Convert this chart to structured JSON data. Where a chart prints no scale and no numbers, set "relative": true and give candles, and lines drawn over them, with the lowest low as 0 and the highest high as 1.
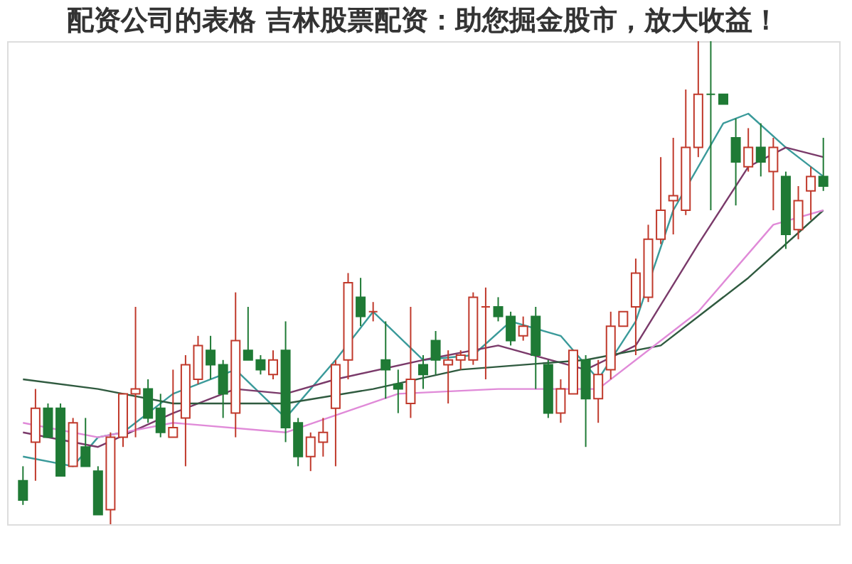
{
  "chart_data": {
    "type": "candlestick",
    "title": "配资公司的表格 吉林股票配资：助您掘金股市，放大收益！",
    "relative": true,
    "categories": [
      null,
      null,
      null,
      null,
      null,
      null,
      null,
      null,
      null,
      null,
      null,
      null,
      null,
      null,
      null,
      null,
      null,
      null,
      null,
      null,
      null,
      null,
      null,
      null,
      null,
      null,
      null,
      null,
      null,
      null,
      null,
      null,
      null,
      null,
      null,
      null,
      null,
      null,
      null,
      null,
      null,
      null,
      null,
      null,
      null,
      null,
      null,
      null,
      null,
      null,
      null,
      null,
      null,
      null,
      null,
      null,
      null,
      null,
      null,
      null,
      null,
      null,
      null,
      null,
      null
    ],
    "ohlc": [
      [
        0.09,
        0.12,
        0.04,
        0.05
      ],
      [
        0.17,
        0.28,
        0.09,
        0.24
      ],
      [
        0.24,
        0.25,
        0.18,
        0.18
      ],
      [
        0.24,
        0.25,
        0.1,
        0.1
      ],
      [
        0.12,
        0.22,
        0.12,
        0.21
      ],
      [
        0.16,
        0.22,
        0.12,
        0.12
      ],
      [
        0.11,
        0.12,
        0.02,
        0.02
      ],
      [
        0.03,
        0.19,
        0,
        0.18
      ],
      [
        0.18,
        0.27,
        0.16,
        0.27
      ],
      [
        0.27,
        0.45,
        0.18,
        0.28
      ],
      [
        0.28,
        0.3,
        0.21,
        0.22
      ],
      [
        0.24,
        0.27,
        0.18,
        0.19
      ],
      [
        0.18,
        0.32,
        0.18,
        0.2
      ],
      [
        0.22,
        0.35,
        0.12,
        0.33
      ],
      [
        0.3,
        0.39,
        0.29,
        0.37
      ],
      [
        0.36,
        0.39,
        0.3,
        0.33
      ],
      [
        0.33,
        0.34,
        0.22,
        0.27
      ],
      [
        0.23,
        0.48,
        0.18,
        0.38
      ],
      [
        0.36,
        0.45,
        0.34,
        0.34
      ],
      [
        0.34,
        0.35,
        0.31,
        0.32
      ],
      [
        0.31,
        0.36,
        0.3,
        0.34
      ],
      [
        0.36,
        0.42,
        0.17,
        0.2
      ],
      [
        0.21,
        0.22,
        0.12,
        0.14
      ],
      [
        0.14,
        0.19,
        0.11,
        0.18
      ],
      [
        0.17,
        0.22,
        0.14,
        0.19
      ],
      [
        0.24,
        0.34,
        0.12,
        0.33
      ],
      [
        0.34,
        0.52,
        0.3,
        0.5
      ],
      [
        0.47,
        0.51,
        0.41,
        0.43
      ],
      [
        0.44,
        0.46,
        0.42,
        0.44
      ],
      [
        0.34,
        0.42,
        0.26,
        0.32
      ],
      [
        0.29,
        0.32,
        0.23,
        0.28
      ],
      [
        0.25,
        0.45,
        0.22,
        0.3
      ],
      [
        0.33,
        0.35,
        0.28,
        0.31
      ],
      [
        0.38,
        0.4,
        0.31,
        0.34
      ],
      [
        0.33,
        0.36,
        0.25,
        0.34
      ],
      [
        0.34,
        0.36,
        0.32,
        0.35
      ],
      [
        0.34,
        0.48,
        0.33,
        0.47
      ],
      [
        0.45,
        0.49,
        0.3,
        0.45
      ],
      [
        0.45,
        0.47,
        0.42,
        0.43
      ],
      [
        0.43,
        0.44,
        0.37,
        0.38
      ],
      [
        0.39,
        0.43,
        0.38,
        0.41
      ],
      [
        0.43,
        0.45,
        0.28,
        0.35
      ],
      [
        0.33,
        0.34,
        0.22,
        0.23
      ],
      [
        0.23,
        0.3,
        0.21,
        0.28
      ],
      [
        0.27,
        0.36,
        0.27,
        0.36
      ],
      [
        0.34,
        0.35,
        0.16,
        0.26
      ],
      [
        0.26,
        0.34,
        0.21,
        0.31
      ],
      [
        0.32,
        0.44,
        0.3,
        0.41
      ],
      [
        0.41,
        0.44,
        0.41,
        0.44
      ],
      [
        0.45,
        0.55,
        0.35,
        0.52
      ],
      [
        0.47,
        0.62,
        0.46,
        0.59
      ],
      [
        0.59,
        0.76,
        0.58,
        0.65
      ],
      [
        0.67,
        0.8,
        0.6,
        0.68
      ],
      [
        0.65,
        0.9,
        0.64,
        0.78
      ],
      [
        0.78,
        1.0,
        0.76,
        0.89
      ],
      [
        0.89,
        1.0,
        0.65,
        0.89
      ],
      [
        0.89,
        0.89,
        0.87,
        0.87
      ],
      [
        0.8,
        0.84,
        0.66,
        0.75
      ],
      [
        0.74,
        0.82,
        0.73,
        0.78
      ],
      [
        0.78,
        0.83,
        0.72,
        0.75
      ],
      [
        0.73,
        0.8,
        0.65,
        0.78
      ],
      [
        0.72,
        0.73,
        0.57,
        0.6
      ],
      [
        0.61,
        0.7,
        0.59,
        0.67
      ],
      [
        0.69,
        0.74,
        0.63,
        0.72
      ],
      [
        0.72,
        0.8,
        0.69,
        0.7
      ]
    ],
    "colors": [
      "#1f7a35",
      "#c0392b",
      "#1f7a35",
      "#1f7a35",
      "#c0392b",
      "#1f7a35",
      "#1f7a35",
      "#c0392b",
      "#c0392b",
      "#c0392b",
      "#1f7a35",
      "#1f7a35",
      "#c0392b",
      "#c0392b",
      "#c0392b",
      "#1f7a35",
      "#1f7a35",
      "#c0392b",
      "#1f7a35",
      "#1f7a35",
      "#c0392b",
      "#1f7a35",
      "#1f7a35",
      "#c0392b",
      "#c0392b",
      "#c0392b",
      "#c0392b",
      "#1f7a35",
      "#c0392b",
      "#1f7a35",
      "#1f7a35",
      "#c0392b",
      "#1f7a35",
      "#1f7a35",
      "#c0392b",
      "#c0392b",
      "#c0392b",
      "#c0392b",
      "#1f7a35",
      "#1f7a35",
      "#c0392b",
      "#1f7a35",
      "#1f7a35",
      "#c0392b",
      "#c0392b",
      "#1f7a35",
      "#c0392b",
      "#c0392b",
      "#c0392b",
      "#c0392b",
      "#c0392b",
      "#c0392b",
      "#c0392b",
      "#c0392b",
      "#c0392b",
      "#1f7a35",
      "#1f7a35",
      "#1f7a35",
      "#c0392b",
      "#1f7a35",
      "#c0392b",
      "#1f7a35",
      "#c0392b",
      "#c0392b",
      "#1f7a35"
    ],
    "series": [
      {
        "type": "line",
        "color": "#3a9a9a",
        "values": [
          0.14,
          null,
          null,
          null,
          0.12,
          null,
          0.18,
          null,
          0.19,
          null,
          null,
          null,
          0.27,
          null,
          null,
          null,
          null,
          0.32,
          null,
          null,
          null,
          0.22,
          null,
          null,
          null,
          0.34,
          null,
          null,
          0.44,
          null,
          null,
          null,
          0.34,
          null,
          null,
          null,
          0.35,
          null,
          null,
          0.42,
          null,
          null,
          null,
          0.39,
          null,
          null,
          0.3,
          null,
          null,
          0.42,
          null,
          null,
          0.65,
          null,
          null,
          null,
          0.83,
          null,
          0.85,
          null,
          null,
          0.78,
          null,
          null,
          0.72
        ]
      },
      {
        "type": "line",
        "color": "#7a3a6a",
        "values": [
          0.19,
          null,
          null,
          null,
          null,
          null,
          0.16,
          null,
          null,
          null,
          null,
          null,
          0.23,
          null,
          null,
          null,
          null,
          0.28,
          null,
          null,
          null,
          0.27,
          null,
          null,
          null,
          0.3,
          null,
          null,
          null,
          null,
          null,
          null,
          0.34,
          null,
          null,
          null,
          null,
          null,
          0.37,
          null,
          null,
          null,
          null,
          null,
          null,
          0.32,
          null,
          null,
          null,
          0.37,
          null,
          null,
          null,
          null,
          0.58,
          null,
          null,
          null,
          0.74,
          null,
          null,
          0.78,
          null,
          null,
          0.76
        ]
      },
      {
        "type": "line",
        "color": "#2f5a3f",
        "values": [
          0.3,
          null,
          null,
          null,
          null,
          null,
          0.28,
          null,
          null,
          null,
          null,
          null,
          0.25,
          null,
          null,
          null,
          null,
          null,
          null,
          null,
          null,
          0.25,
          null,
          null,
          null,
          null,
          null,
          null,
          0.28,
          null,
          null,
          null,
          null,
          null,
          null,
          0.32,
          null,
          null,
          null,
          null,
          null,
          null,
          null,
          null,
          null,
          0.34,
          null,
          null,
          null,
          null,
          null,
          0.37,
          null,
          null,
          null,
          null,
          null,
          null,
          0.51,
          null,
          null,
          null,
          null,
          null,
          0.65
        ]
      },
      {
        "type": "line",
        "color": "#e08ad8",
        "values": [
          0.21,
          null,
          null,
          null,
          null,
          null,
          0.18,
          null,
          null,
          null,
          null,
          null,
          0.21,
          null,
          null,
          null,
          null,
          null,
          null,
          null,
          null,
          0.19,
          null,
          null,
          null,
          null,
          null,
          null,
          null,
          null,
          0.27,
          null,
          null,
          null,
          null,
          null,
          null,
          null,
          0.28,
          null,
          null,
          null,
          null,
          null,
          null,
          null,
          0.28,
          null,
          null,
          null,
          null,
          null,
          null,
          null,
          0.44,
          null,
          null,
          null,
          null,
          null,
          0.62,
          null,
          null,
          null,
          0.65
        ]
      }
    ]
  }
}
